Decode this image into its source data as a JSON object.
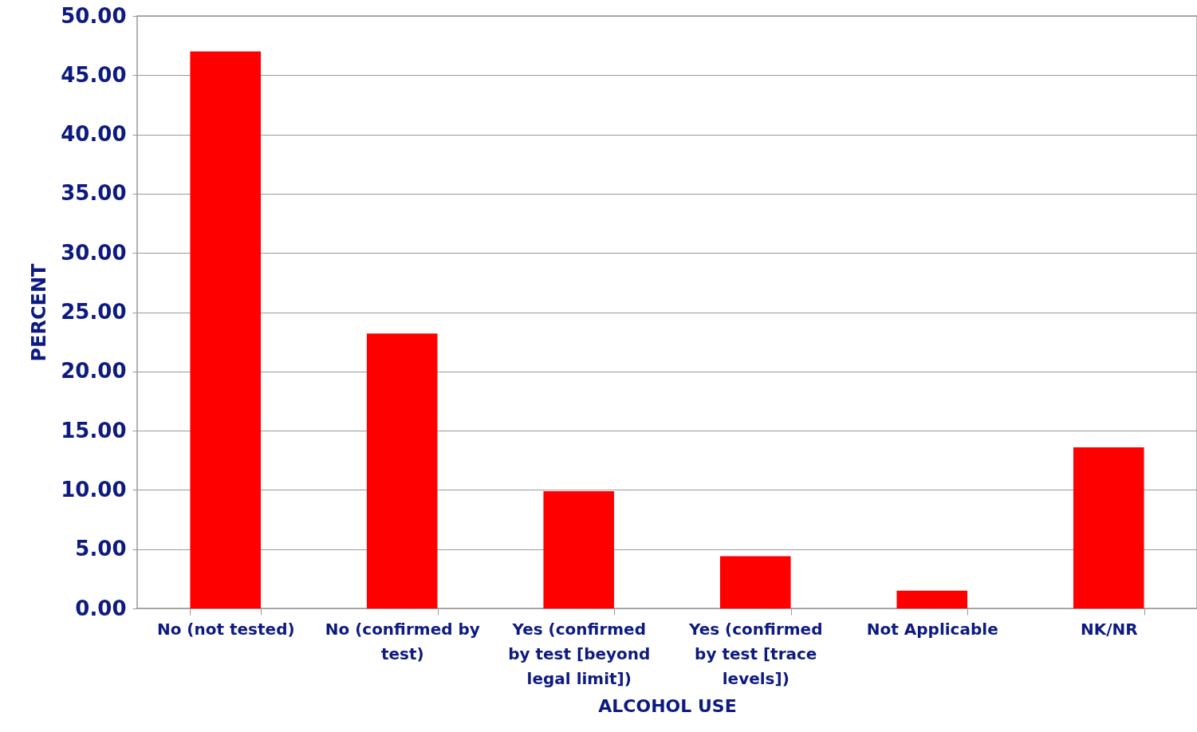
{
  "chart_data": {
    "type": "bar",
    "xlabel": "ALCOHOL USE",
    "ylabel": "PERCENT",
    "categories": [
      "No (not tested)",
      "No (confirmed by test)",
      "Yes (confirmed by test [beyond legal limit])",
      "Yes (confirmed by test [trace levels])",
      "Not Applicable",
      "NK/NR"
    ],
    "values": [
      47.0,
      23.2,
      9.9,
      4.4,
      1.5,
      13.6
    ],
    "color": "#ff0000",
    "ylim": [
      0,
      50
    ],
    "yticks": [
      {
        "value": 0,
        "label": "0.00"
      },
      {
        "value": 5,
        "label": "5.00"
      },
      {
        "value": 10,
        "label": "10.00"
      },
      {
        "value": 15,
        "label": "15.00"
      },
      {
        "value": 20,
        "label": "20.00"
      },
      {
        "value": 25,
        "label": "25.00"
      },
      {
        "value": 30,
        "label": "30.00"
      },
      {
        "value": 35,
        "label": "35.00"
      },
      {
        "value": 40,
        "label": "40.00"
      },
      {
        "value": 45,
        "label": "45.00"
      },
      {
        "value": 50,
        "label": "50.00"
      }
    ],
    "grid": "y"
  }
}
